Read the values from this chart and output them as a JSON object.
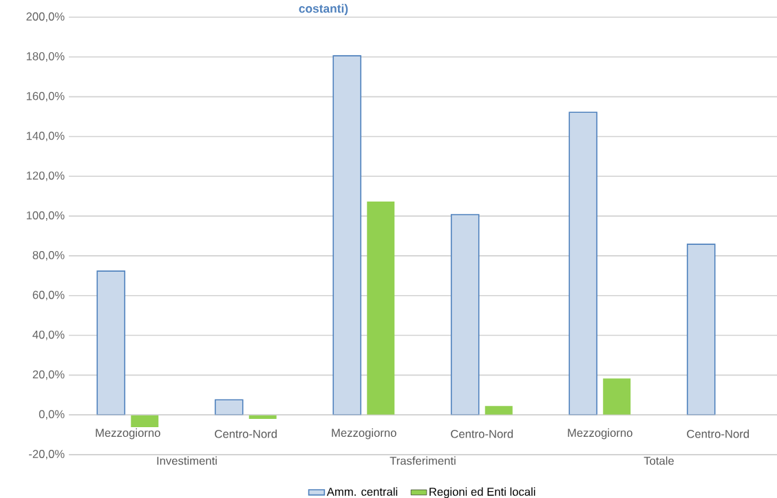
{
  "chart_data": {
    "type": "bar",
    "title": "costanti)",
    "categories": [
      "Mezzogiorno",
      "Centro-Nord",
      "Mezzogiorno",
      "Centro-Nord",
      "Mezzogiorno",
      "Centro-Nord"
    ],
    "annotations": [
      "Investimenti",
      "Trasferimenti",
      "Totale"
    ],
    "series": [
      {
        "name": "Amm. centrali",
        "color": "#4f81bd",
        "values": [
          72.3,
          7.6,
          180.6,
          100.7,
          152.2,
          85.8
        ]
      },
      {
        "name": "Regioni ed Enti locali",
        "color": "#92d050",
        "values": [
          -6.2,
          -2.0,
          107.3,
          4.5,
          18.3,
          0
        ]
      }
    ],
    "ylim": [
      -20,
      200
    ],
    "yticks": [
      {
        "value": -20,
        "label": "-20,0%"
      },
      {
        "value": 0,
        "label": "0,0%"
      },
      {
        "value": 20,
        "label": "20,0%"
      },
      {
        "value": 40,
        "label": "40,0%"
      },
      {
        "value": 60,
        "label": "60,0%"
      },
      {
        "value": 80,
        "label": "80,0%"
      },
      {
        "value": 100,
        "label": "100,0%"
      },
      {
        "value": 120,
        "label": "120,0%"
      },
      {
        "value": 140,
        "label": "140,0%"
      },
      {
        "value": 160,
        "label": "160,0%"
      },
      {
        "value": 180,
        "label": "180,0%"
      },
      {
        "value": 200,
        "label": "200,0%"
      }
    ],
    "grid": "y",
    "legend": "bottom"
  }
}
